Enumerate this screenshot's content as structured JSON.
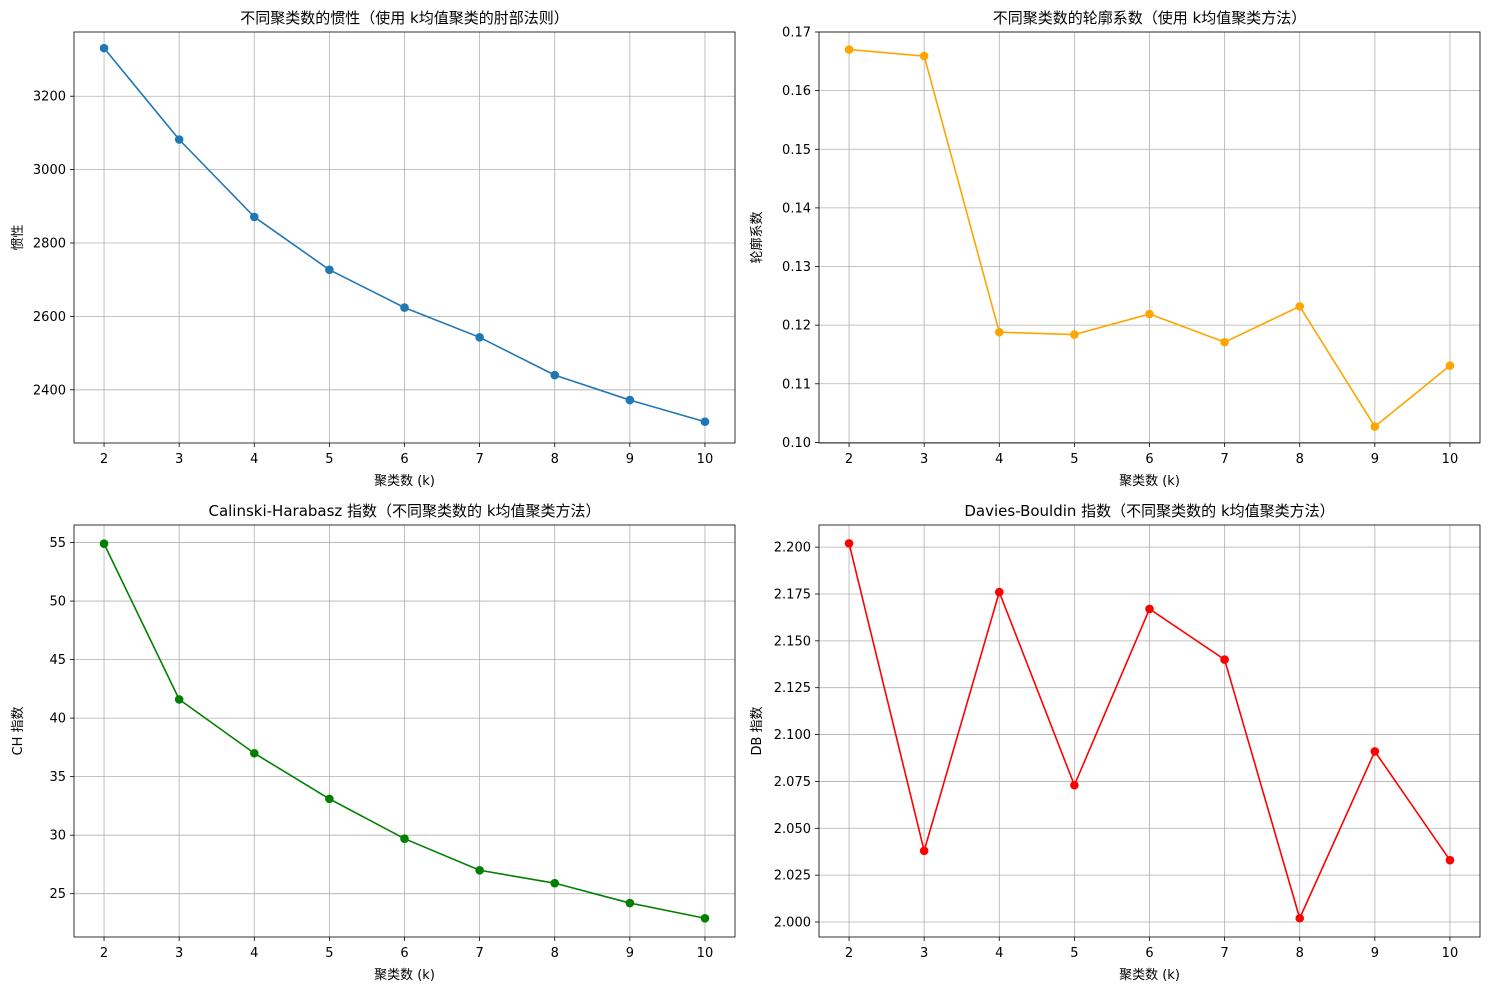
{
  "chart_data": [
    {
      "type": "line",
      "title": "不同聚类数的惯性（使用 k均值聚类的肘部法则）",
      "xlabel": "聚类数 (k)",
      "ylabel": "惯性",
      "color": "#1f77b4",
      "x": [
        2,
        3,
        4,
        5,
        6,
        7,
        8,
        9,
        10
      ],
      "values": [
        3331,
        3082,
        2871,
        2727,
        2624,
        2543,
        2440,
        2372,
        2313
      ],
      "ylim": [
        2255,
        3375
      ],
      "xlim": [
        1.6,
        10.4
      ],
      "yticks": [
        2400,
        2600,
        2800,
        3000,
        3200
      ],
      "ytick_labels": [
        "2400",
        "2600",
        "2800",
        "3000",
        "3200"
      ],
      "xticks": [
        2,
        3,
        4,
        5,
        6,
        7,
        8,
        9,
        10
      ],
      "xtick_labels": [
        "2",
        "3",
        "4",
        "5",
        "6",
        "7",
        "8",
        "9",
        "10"
      ],
      "grid": true
    },
    {
      "type": "line",
      "title": "不同聚类数的轮廓系数（使用 k均值聚类方法）",
      "xlabel": "聚类数 (k)",
      "ylabel": "轮廓系数",
      "color": "#ffa500",
      "x": [
        2,
        3,
        4,
        5,
        6,
        7,
        8,
        9,
        10
      ],
      "values": [
        0.167,
        0.1659,
        0.1188,
        0.1184,
        0.1219,
        0.1171,
        0.1232,
        0.1027,
        0.1131
      ],
      "ylim": [
        0.0999,
        0.17
      ],
      "xlim": [
        1.6,
        10.4
      ],
      "yticks": [
        0.1,
        0.11,
        0.12,
        0.13,
        0.14,
        0.15,
        0.16,
        0.17
      ],
      "ytick_labels": [
        "0.10",
        "0.11",
        "0.12",
        "0.13",
        "0.14",
        "0.15",
        "0.16",
        "0.17"
      ],
      "xticks": [
        2,
        3,
        4,
        5,
        6,
        7,
        8,
        9,
        10
      ],
      "xtick_labels": [
        "2",
        "3",
        "4",
        "5",
        "6",
        "7",
        "8",
        "9",
        "10"
      ],
      "grid": true
    },
    {
      "type": "line",
      "title": "Calinski-Harabasz 指数（不同聚类数的 k均值聚类方法）",
      "xlabel": "聚类数 (k)",
      "ylabel": "CH 指数",
      "color": "#008000",
      "x": [
        2,
        3,
        4,
        5,
        6,
        7,
        8,
        9,
        10
      ],
      "values": [
        54.9,
        41.6,
        37.0,
        33.1,
        29.7,
        27.0,
        25.9,
        24.2,
        22.9
      ],
      "ylim": [
        21.3,
        56.5
      ],
      "xlim": [
        1.6,
        10.4
      ],
      "yticks": [
        25,
        30,
        35,
        40,
        45,
        50,
        55
      ],
      "ytick_labels": [
        "25",
        "30",
        "35",
        "40",
        "45",
        "50",
        "55"
      ],
      "xticks": [
        2,
        3,
        4,
        5,
        6,
        7,
        8,
        9,
        10
      ],
      "xtick_labels": [
        "2",
        "3",
        "4",
        "5",
        "6",
        "7",
        "8",
        "9",
        "10"
      ],
      "grid": true
    },
    {
      "type": "line",
      "title": "Davies-Bouldin 指数（不同聚类数的 k均值聚类方法）",
      "xlabel": "聚类数 (k)",
      "ylabel": "DB 指数",
      "color": "#ff0000",
      "x": [
        2,
        3,
        4,
        5,
        6,
        7,
        8,
        9,
        10
      ],
      "values": [
        2.202,
        2.038,
        2.176,
        2.073,
        2.167,
        2.14,
        2.002,
        2.091,
        2.033
      ],
      "ylim": [
        1.992,
        2.2118
      ],
      "xlim": [
        1.6,
        10.4
      ],
      "yticks": [
        2.0,
        2.025,
        2.05,
        2.075,
        2.1,
        2.125,
        2.15,
        2.175,
        2.2
      ],
      "ytick_labels": [
        "2.000",
        "2.025",
        "2.050",
        "2.075",
        "2.100",
        "2.125",
        "2.150",
        "2.175",
        "2.200"
      ],
      "xticks": [
        2,
        3,
        4,
        5,
        6,
        7,
        8,
        9,
        10
      ],
      "xtick_labels": [
        "2",
        "3",
        "4",
        "5",
        "6",
        "7",
        "8",
        "9",
        "10"
      ],
      "grid": true
    }
  ]
}
